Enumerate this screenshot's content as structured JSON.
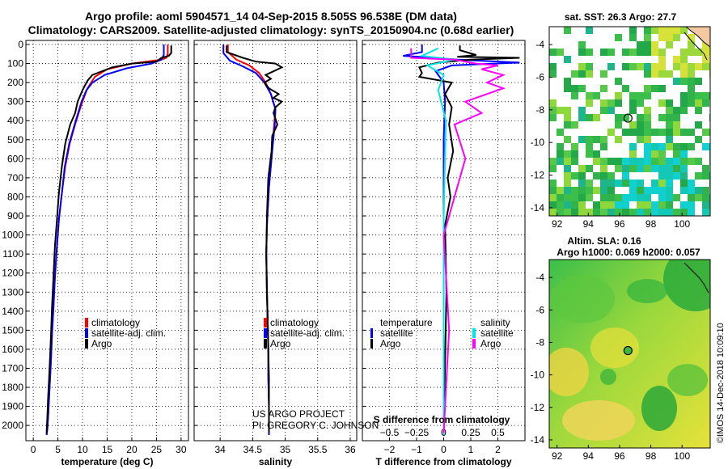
{
  "header": {
    "line1": "Argo profile: aoml 5904571_14 04-Sep-2015 8.505S 96.538E (DM data)",
    "line2": "Climatology: CARS2009. Satellite-adjusted climatology: synTS_20150904.nc (0.68d earlier)"
  },
  "side_note": "©IMOS 14-Dec-2018 10:09:10",
  "colors": {
    "climatology": "#ff0000",
    "satellite": "#0000ff",
    "argo": "#000000",
    "sat_salinity": "#00e5e5",
    "argo_salinity": "#ff00ff"
  },
  "chart_data": [
    {
      "type": "line",
      "title": "",
      "xlabel": "temperature (deg C)",
      "ylabel": "",
      "xlim": [
        -1.5,
        31.5
      ],
      "ylim": [
        2080,
        0
      ],
      "xticks": [
        0,
        5,
        10,
        15,
        20,
        25,
        30
      ],
      "xtick_labels": [
        "0",
        "5",
        "10",
        "15",
        "20",
        "25",
        "30"
      ],
      "yticks": [
        0,
        100,
        200,
        300,
        400,
        500,
        600,
        700,
        800,
        900,
        1000,
        1100,
        1200,
        1300,
        1400,
        1500,
        1600,
        1700,
        1800,
        1900,
        2000
      ],
      "legend": [
        "climatology",
        "satellite-adj. clim.",
        "Argo"
      ],
      "legend_position": "lower-right",
      "series": [
        {
          "name": "climatology",
          "color": "#ff0000",
          "x": [
            27.3,
            27.3,
            27.0,
            26.0,
            20.0,
            15.0,
            12.5,
            11.0,
            10.0,
            9.2,
            8.5,
            7.4,
            6.5,
            5.8,
            5.2,
            4.8,
            4.4,
            4.1,
            3.8,
            3.6,
            3.4,
            3.2,
            3.0,
            2.85,
            2.7
          ],
          "y": [
            0,
            50,
            70,
            80,
            100,
            130,
            170,
            230,
            300,
            360,
            420,
            520,
            640,
            780,
            920,
            1060,
            1220,
            1380,
            1520,
            1650,
            1760,
            1860,
            1960,
            2020,
            2050
          ]
        },
        {
          "name": "satellite-adj. clim.",
          "color": "#0000ff",
          "x": [
            26.5,
            26.5,
            26.0,
            24.0,
            19.0,
            14.5,
            12.0,
            10.8,
            9.8,
            9.1,
            8.4,
            7.3,
            6.4,
            5.8,
            5.2,
            4.8,
            4.4,
            4.1,
            3.8,
            3.6,
            3.4,
            3.2,
            3.0,
            2.85,
            2.7
          ],
          "y": [
            0,
            55,
            80,
            100,
            125,
            160,
            200,
            240,
            300,
            360,
            420,
            520,
            640,
            780,
            920,
            1060,
            1220,
            1380,
            1520,
            1650,
            1760,
            1860,
            1960,
            2020,
            2050
          ]
        },
        {
          "name": "Argo",
          "color": "#000000",
          "x": [
            28.0,
            28.0,
            27.5,
            26.0,
            25.0,
            20.0,
            16.0,
            14.0,
            12.0,
            11.0,
            10.0,
            9.0,
            8.5,
            7.5,
            6.5,
            5.8,
            5.2,
            4.8,
            4.4,
            4.1,
            3.8,
            3.6,
            3.4,
            3.2,
            3.0,
            2.85,
            2.7
          ],
          "y": [
            5,
            45,
            60,
            70,
            90,
            100,
            120,
            140,
            160,
            190,
            240,
            300,
            360,
            420,
            520,
            640,
            780,
            920,
            1060,
            1220,
            1380,
            1520,
            1650,
            1760,
            1860,
            1960,
            2040
          ]
        }
      ]
    },
    {
      "type": "line",
      "title": "",
      "xlabel": "salinity",
      "ylabel": "",
      "xlim": [
        33.6,
        36.1
      ],
      "ylim": [
        2080,
        0
      ],
      "xticks": [
        34,
        34.5,
        35,
        35.5,
        36
      ],
      "xtick_labels": [
        "34",
        "34.5",
        "35",
        "35.5",
        "36"
      ],
      "yticks": [
        0,
        100,
        200,
        300,
        400,
        500,
        600,
        700,
        800,
        900,
        1000,
        1100,
        1200,
        1300,
        1400,
        1500,
        1600,
        1700,
        1800,
        1900,
        2000
      ],
      "legend": [
        "climatology",
        "satellite-adj. clim.",
        "Argo"
      ],
      "legend_position": "lower-right",
      "annotations": [
        "US ARGO PROJECT",
        "PI: GREGORY C. JOHNSON"
      ],
      "series": [
        {
          "name": "climatology",
          "color": "#ff0000",
          "x": [
            34.12,
            34.12,
            34.25,
            34.45,
            34.6,
            34.7,
            34.78,
            34.85,
            34.83,
            34.8,
            34.75,
            34.72,
            34.71,
            34.72,
            34.73,
            34.74,
            34.74,
            34.75,
            34.75,
            34.75
          ],
          "y": [
            0,
            40,
            80,
            110,
            150,
            200,
            260,
            340,
            420,
            560,
            750,
            950,
            1100,
            1300,
            1450,
            1600,
            1750,
            1900,
            2000,
            2050
          ]
        },
        {
          "name": "satellite-adj. clim.",
          "color": "#0000ff",
          "x": [
            34.05,
            34.05,
            34.15,
            34.35,
            34.55,
            34.68,
            34.78,
            34.85,
            34.84,
            34.8,
            34.75,
            34.72,
            34.71,
            34.72,
            34.73,
            34.74,
            34.74,
            34.75,
            34.75,
            34.75
          ],
          "y": [
            0,
            45,
            85,
            115,
            150,
            200,
            260,
            340,
            420,
            560,
            750,
            950,
            1100,
            1300,
            1450,
            1600,
            1750,
            1900,
            2000,
            2050
          ]
        },
        {
          "name": "Argo",
          "color": "#000000",
          "x": [
            34.1,
            34.1,
            34.35,
            34.55,
            34.85,
            34.95,
            34.7,
            34.78,
            34.68,
            34.75,
            34.9,
            34.82,
            34.95,
            34.85,
            34.82,
            34.88,
            34.8,
            34.79,
            34.74,
            34.72,
            34.71,
            34.72,
            34.73,
            34.74,
            34.75,
            34.75,
            34.75
          ],
          "y": [
            5,
            40,
            70,
            90,
            100,
            120,
            160,
            180,
            200,
            230,
            260,
            280,
            300,
            330,
            360,
            420,
            480,
            560,
            700,
            900,
            1100,
            1300,
            1450,
            1600,
            1750,
            1900,
            2040
          ]
        }
      ]
    },
    {
      "type": "line",
      "title": "",
      "xlabel": "T difference from climatology",
      "xlabel_top": "S difference from climatology",
      "ylabel": "",
      "xlim": [
        -3,
        3
      ],
      "ylim": [
        2080,
        0
      ],
      "xticks": [
        -2,
        -1,
        0,
        1,
        2
      ],
      "xtick_labels": [
        "−2",
        "−1",
        "0",
        "1",
        "2"
      ],
      "xticks_top": [
        -0.5,
        -0.25,
        0,
        0.25,
        0.5
      ],
      "xtick_labels_top": [
        "−0.5",
        "−0.25",
        "0",
        "0.25",
        "0.5"
      ],
      "yticks": [
        0,
        100,
        200,
        300,
        400,
        500,
        600,
        700,
        800,
        900,
        1000,
        1100,
        1200,
        1300,
        1400,
        1500,
        1600,
        1700,
        1800,
        1900,
        2000
      ],
      "legend_titles": [
        "temperature",
        "salinity"
      ],
      "legend": [
        "satellite",
        "Argo",
        "satellite",
        "Argo"
      ],
      "legend_position": "lower-center",
      "series": [
        {
          "name": "temperature satellite",
          "color": "#0000ff",
          "x": [
            -0.8,
            -0.8,
            -1.5,
            -0.3,
            0.5,
            2.8,
            0.3,
            -0.3,
            0.0,
            0.05,
            0.0,
            0.0,
            0.0,
            0.0
          ],
          "y": [
            0,
            40,
            60,
            70,
            80,
            95,
            110,
            140,
            200,
            300,
            500,
            900,
            1500,
            2050
          ]
        },
        {
          "name": "temperature Argo",
          "color": "#000000",
          "x": [
            0.6,
            0.6,
            1.2,
            0.5,
            2.8,
            1.0,
            -0.2,
            -0.9,
            -0.8,
            -0.9,
            0.3,
            0.05,
            0.3,
            0.2,
            0.35,
            0.15,
            0.25,
            0.05,
            0.1,
            0.0
          ],
          "y": [
            5,
            30,
            55,
            65,
            70,
            80,
            95,
            120,
            150,
            170,
            200,
            260,
            330,
            420,
            560,
            700,
            800,
            950,
            1300,
            2040
          ]
        },
        {
          "name": "salinity satellite",
          "color": "#00e5e5",
          "x": [
            -0.05,
            -0.2,
            0.1,
            -0.15,
            0.0,
            -0.05,
            0.02,
            0.0,
            0.0
          ],
          "y": [
            20,
            60,
            80,
            110,
            160,
            240,
            400,
            900,
            2050
          ]
        },
        {
          "name": "salinity Argo",
          "color": "#ff00ff",
          "x": [
            -0.3,
            -0.3,
            0.1,
            0.3,
            0.5,
            0.35,
            0.55,
            0.4,
            0.55,
            0.2,
            0.35,
            0.1,
            0.2,
            0.0,
            0.05,
            0.0
          ],
          "y": [
            20,
            70,
            80,
            100,
            110,
            130,
            160,
            200,
            230,
            300,
            360,
            420,
            600,
            1000,
            1500,
            2040
          ]
        }
      ]
    },
    {
      "type": "heatmap",
      "title": "sat. SST: 26.3 Argo: 27.7",
      "xlim": [
        91.5,
        101.8
      ],
      "ylim": [
        -14.5,
        -2.9
      ],
      "xticks": [
        92,
        94,
        96,
        98,
        100
      ],
      "xtick_labels": [
        "92",
        "94",
        "96",
        "98",
        "100"
      ],
      "yticks": [
        -4,
        -6,
        -8,
        -10,
        -12,
        -14
      ],
      "ytick_labels": [
        "-4",
        "-6",
        "-8",
        "-10",
        "-12",
        "-14"
      ],
      "marker": {
        "lon": 96.538,
        "lat": -8.505
      }
    },
    {
      "type": "heatmap",
      "title": "Altim. SLA: 0.16",
      "subtitle": "Argo h1000: 0.069 h2000: 0.057",
      "xlim": [
        91.5,
        101.8
      ],
      "ylim": [
        -14.5,
        -2.9
      ],
      "xticks": [
        92,
        94,
        96,
        98,
        100
      ],
      "xtick_labels": [
        "92",
        "94",
        "96",
        "98",
        "100"
      ],
      "yticks": [
        -4,
        -6,
        -8,
        -10,
        -12,
        -14
      ],
      "ytick_labels": [
        "-4",
        "-6",
        "-8",
        "-10",
        "-12",
        "-14"
      ],
      "marker": {
        "lon": 96.538,
        "lat": -8.505
      }
    }
  ]
}
